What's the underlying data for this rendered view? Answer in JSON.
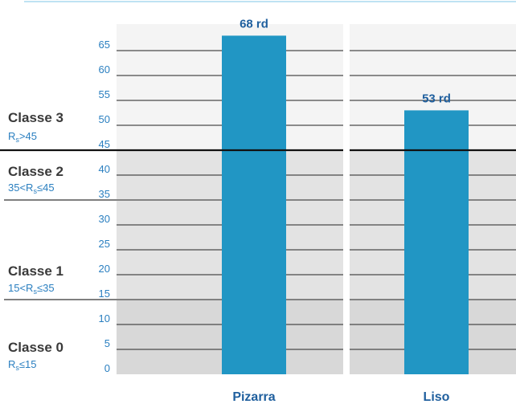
{
  "chart_data": {
    "type": "bar",
    "categories": [
      "Pizarra",
      "Liso"
    ],
    "values": [
      68,
      53
    ],
    "value_labels": [
      "68 rd",
      "53 rd"
    ],
    "yticks": [
      0,
      5,
      10,
      15,
      20,
      25,
      30,
      35,
      40,
      45,
      50,
      55,
      60,
      65
    ],
    "ylim": [
      0,
      70
    ],
    "bar_color": "#2196c4",
    "class_bands": [
      {
        "name": "Classe 3",
        "range_prefix": "R",
        "range_sub": "s",
        "range_suffix": ">45",
        "min": 45,
        "max": 70,
        "shaded": false
      },
      {
        "name": "Classe 2",
        "range_prefix": "35<R",
        "range_sub": "s",
        "range_suffix": "≤45",
        "min": 35,
        "max": 45,
        "shaded": true
      },
      {
        "name": "Classe 1",
        "range_prefix": "15<R",
        "range_sub": "s",
        "range_suffix": "≤35",
        "min": 15,
        "max": 35,
        "shaded": true
      },
      {
        "name": "Classe 0",
        "range_prefix": "R",
        "range_sub": "s",
        "range_suffix": "≤15",
        "min": 0,
        "max": 15,
        "shaded": true
      }
    ]
  }
}
